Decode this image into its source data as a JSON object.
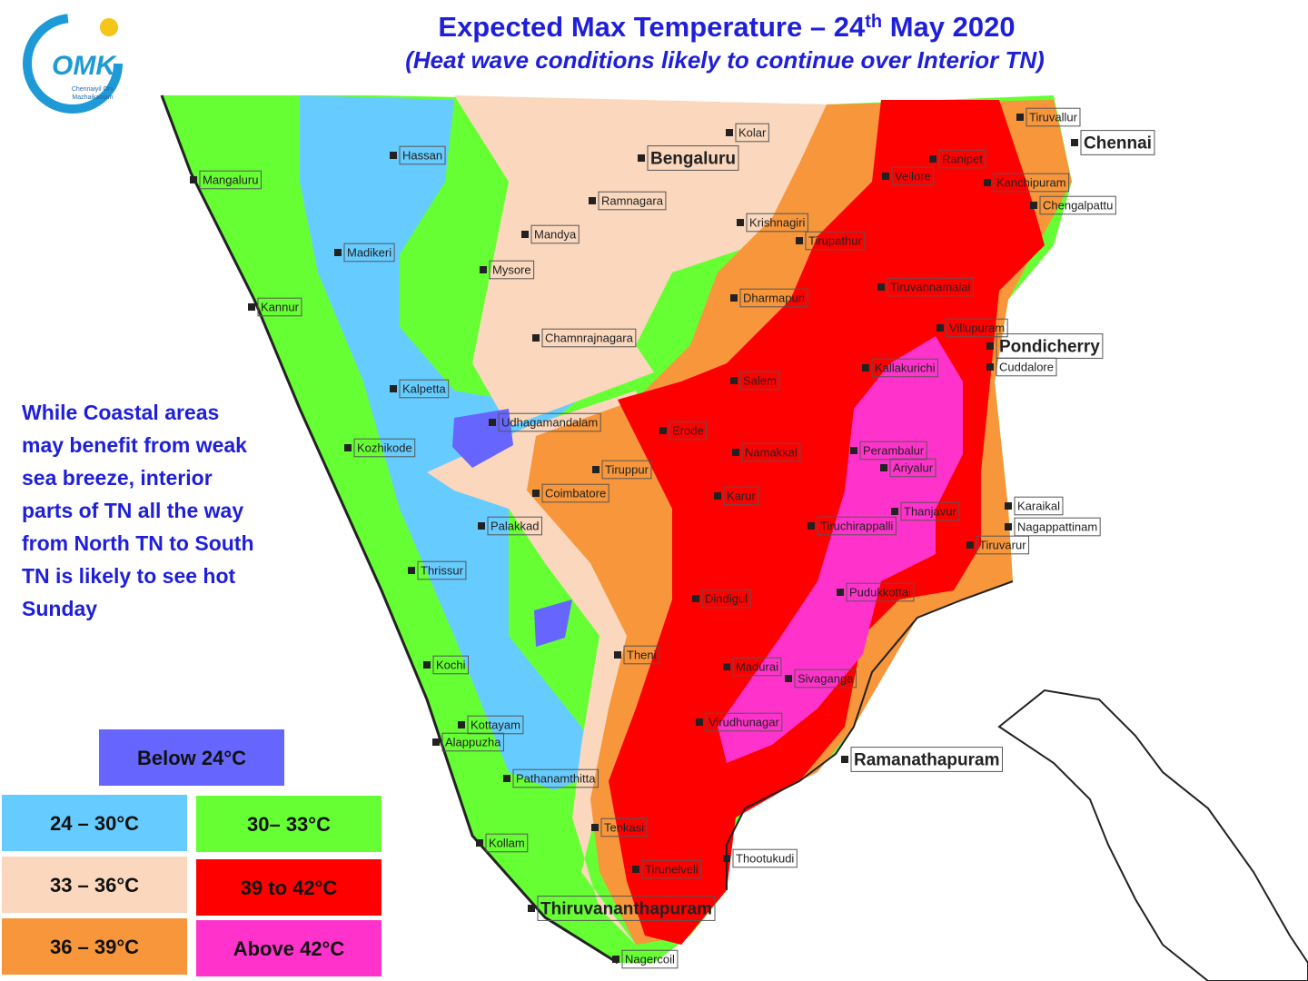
{
  "header": {
    "title_main": "Expected Max Temperature – 24",
    "title_sup": "th",
    "title_end": " May 2020",
    "subtitle": "(Heat wave conditions likely to continue over Interior TN)"
  },
  "logo": {
    "mark": "OMK",
    "caption_1": "Chennaiyil Oru",
    "caption_2": "Mazhaikaalam"
  },
  "note": {
    "lines": [
      "While Coastal areas",
      "may benefit from weak",
      "sea breeze, interior",
      "parts of TN all the way",
      "from North TN to South",
      "TN is likely to see hot",
      "Sunday"
    ]
  },
  "legend": [
    {
      "label": "Below 24°C",
      "color": "#6666ff"
    },
    {
      "label": "24 – 30°C",
      "color": "#66ccff"
    },
    {
      "label": "30– 33°C",
      "color": "#66ff33"
    },
    {
      "label": "33 – 36°C",
      "color": "#fad7bd"
    },
    {
      "label": "39 to 42°C",
      "color": "#ff0000"
    },
    {
      "label": "36 – 39°C",
      "color": "#f7963a"
    },
    {
      "label": "Above 42°C",
      "color": "#ff33cc"
    }
  ],
  "cities": [
    "Hassan",
    "Mangaluru",
    "Kolar",
    "Bengaluru",
    "Ramnagara",
    "Mandya",
    "Madikeri",
    "Mysore",
    "Kannur",
    "Chamnrajnagara",
    "Kalpetta",
    "Udhagamandalam",
    "Kozhikode",
    "Palakkad",
    "Thrissur",
    "Coimbatore",
    "Tiruppur",
    "Erode",
    "Namakkal",
    "Salem",
    "Dharmapuri",
    "Krishnagiri",
    "Tirupathur",
    "Tiruvallur",
    "Chennai",
    "Ranipet",
    "Vellore",
    "Kanchipuram",
    "Chengalpattu",
    "Tiruvannamalai",
    "Villupuram",
    "Pondicherry",
    "Cuddalore",
    "Kallakurichi",
    "Perambalur",
    "Ariyalur",
    "Thanjavur",
    "Tiruchirappalli",
    "Karaikal",
    "Nagappattinam",
    "Tiruvarur",
    "Karur",
    "Dindigul",
    "Pudukkottai",
    "Theni",
    "Madurai",
    "Sivaganga",
    "Virudhunagar",
    "Ramanathapuram",
    "Kochi",
    "Kottayam",
    "Alappuzha",
    "Pathanamthitta",
    "Tenkasi",
    "Kollam",
    "Thootukudi",
    "Tirunelveli",
    "Thiruvananthapuram",
    "Nagercoil"
  ]
}
